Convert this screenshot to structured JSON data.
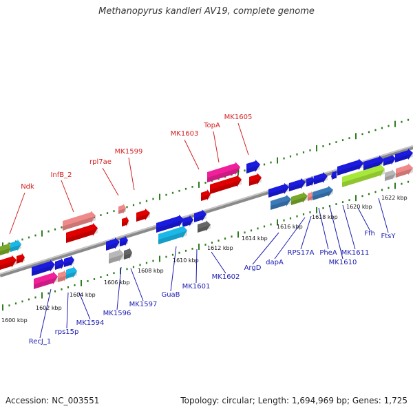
{
  "title": "Methanopyrus kandleri AV19, complete genome",
  "footer": {
    "accession": "Accession: NC_003551",
    "summary": "Topology: circular; Length: 1,694,969 bp; Genes: 1,725"
  },
  "colors": {
    "background": "#ffffff",
    "backbone": "#8a8a8a",
    "tick": "#2e7d1e",
    "top_label": "#d42020",
    "bottom_label": "#1b1bb0",
    "gene_blue": "#1a1ae0",
    "gene_red": "#e00000",
    "gene_pink": "#f08a8a",
    "gene_magenta": "#f0209a",
    "gene_cyan": "#1ab8e8",
    "gene_green": "#7aa82a",
    "gene_lime": "#a8e83a",
    "gene_steel": "#3a7ab8",
    "gene_gray": "#b8b8b8",
    "gene_dgray": "#666666"
  },
  "scale_labels": [
    "1600 kbp",
    "1602 kbp",
    "1604 kbp",
    "1606 kbp",
    "1608 kbp",
    "1610 kbp",
    "1612 kbp",
    "1614 kbp",
    "1616 kbp",
    "1618 kbp",
    "1620 kbp",
    "1622 kbp"
  ],
  "top_labels": [
    "Ndk",
    "InfB_2",
    "rpl7ae",
    "MK1599",
    "MK1603",
    "TopA",
    "MK1605"
  ],
  "bottom_labels": [
    "RecJ_1",
    "rps15p",
    "MK1594",
    "MK1596",
    "MK1597",
    "GuaB",
    "MK1601",
    "MK1602",
    "ArgD",
    "dapA",
    "RPS17A",
    "PheA",
    "MK1611",
    "MK1610",
    "Ffh",
    "FtsY"
  ]
}
